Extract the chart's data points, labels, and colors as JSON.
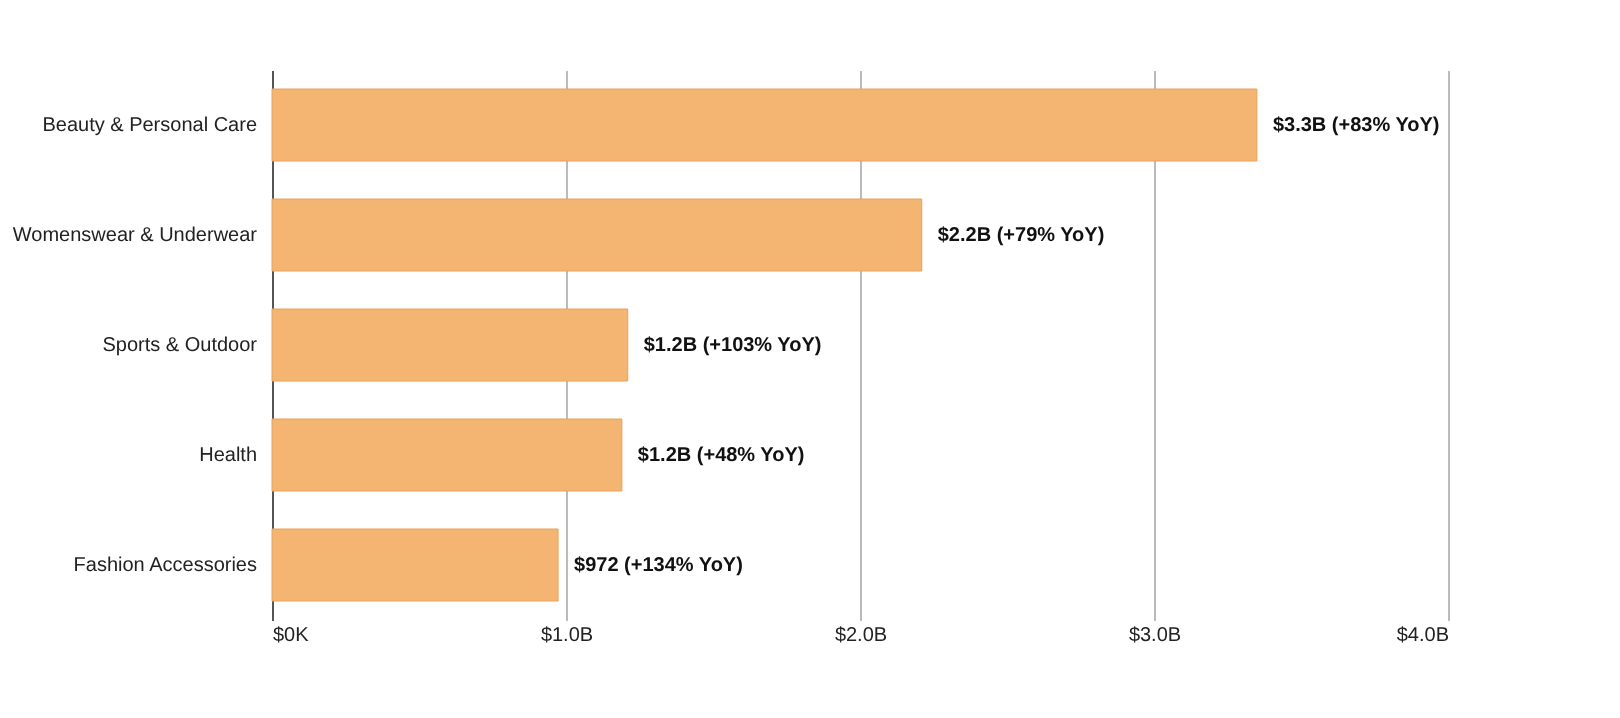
{
  "chart_data": {
    "type": "bar",
    "orientation": "horizontal",
    "categories": [
      "Beauty & Personal Care",
      "Womenswear & Underwear",
      "Sports & Outdoor",
      "Health",
      "Fashion Accessories"
    ],
    "values": [
      3.35,
      2.21,
      1.21,
      1.19,
      0.973
    ],
    "annotations": [
      {
        "text": "$3.3B (+83% YoY)",
        "x": 3.35,
        "y": "Beauty & Personal Care"
      },
      {
        "text": "$2.2B (+79% YoY)",
        "x": 2.21,
        "y": "Womenswear & Underwear"
      },
      {
        "text": "$1.2B (+103% YoY)",
        "x": 1.21,
        "y": "Sports & Outdoor"
      },
      {
        "text": "$1.2B (+48% YoY)",
        "x": 1.19,
        "y": "Health"
      },
      {
        "text": "$972 (+134% YoY)",
        "x": 0.973,
        "y": "Fashion Accessories"
      }
    ],
    "color": "#f5b572",
    "xlim": [
      0,
      4
    ],
    "xticks": [
      {
        "value": 0,
        "label": "$0K"
      },
      {
        "value": 1,
        "label": "$1.0B"
      },
      {
        "value": 2,
        "label": "$2.0B"
      },
      {
        "value": 3,
        "label": "$3.0B"
      },
      {
        "value": 4,
        "label": "$4.0B"
      }
    ],
    "grid": "x"
  }
}
